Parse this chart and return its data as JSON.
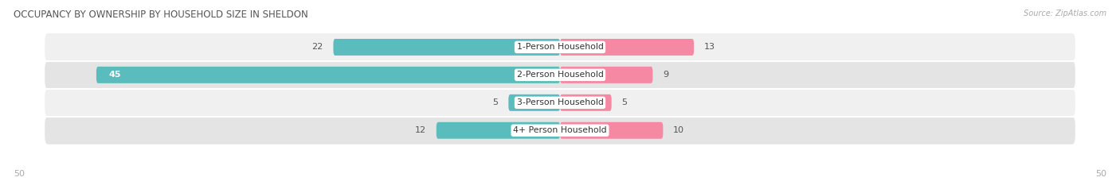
{
  "title": "OCCUPANCY BY OWNERSHIP BY HOUSEHOLD SIZE IN SHELDON",
  "source": "Source: ZipAtlas.com",
  "categories": [
    "1-Person Household",
    "2-Person Household",
    "3-Person Household",
    "4+ Person Household"
  ],
  "owner_values": [
    22,
    45,
    5,
    12
  ],
  "renter_values": [
    13,
    9,
    5,
    10
  ],
  "owner_color": "#5bbcbd",
  "renter_color": "#f589a3",
  "row_bg_light": "#f0f0f0",
  "row_bg_dark": "#e4e4e4",
  "max_val": 50,
  "title_color": "#555555",
  "label_color": "#555555",
  "figsize": [
    14.06,
    2.33
  ],
  "dpi": 100
}
